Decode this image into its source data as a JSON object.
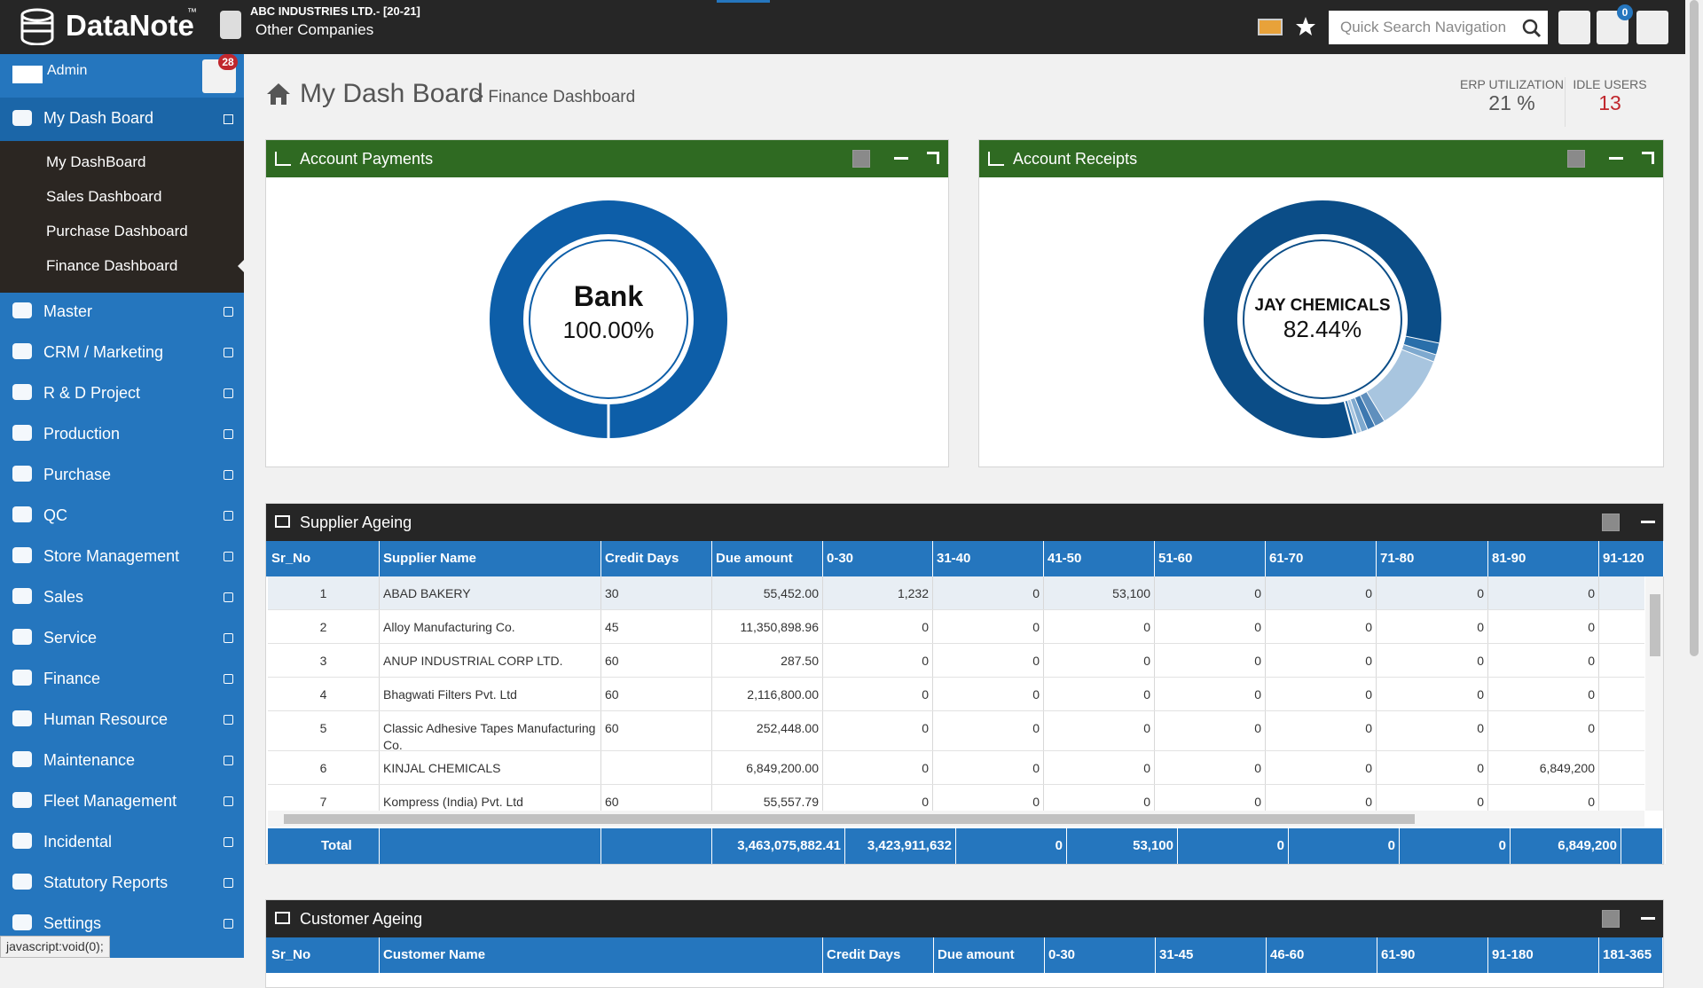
{
  "header": {
    "brand": "DataNote",
    "trademark": "™",
    "company": "ABC INDUSTRIES LTD.- [20-21]",
    "company_switch": "Other Companies",
    "search_placeholder": "Quick Search Navigation",
    "notifications": "0"
  },
  "sidebar": {
    "user": "Admin",
    "alerts": "28",
    "active_menu": "My Dash Board",
    "submenu": [
      "My DashBoard",
      "Sales Dashboard",
      "Purchase Dashboard",
      "Finance Dashboard"
    ],
    "menu": [
      "Master",
      "CRM / Marketing",
      "R & D Project",
      "Production",
      "Purchase",
      "QC",
      "Store Management",
      "Sales",
      "Service",
      "Finance",
      "Human Resource",
      "Maintenance",
      "Fleet Management",
      "Incidental",
      "Statutory Reports",
      "Settings"
    ]
  },
  "page": {
    "title": "My Dash Board",
    "breadcrumb": "> Finance Dashboard",
    "stats": [
      {
        "label": "ERP UTILIZATION",
        "value": "21 %"
      },
      {
        "label": "IDLE USERS",
        "value": "13"
      }
    ]
  },
  "chart_data": [
    {
      "type": "pie",
      "title": "Account Payments",
      "categories": [
        "Bank"
      ],
      "values": [
        100
      ],
      "value_labels": [
        "100.00%"
      ],
      "colors": [
        "#0d5ea8"
      ]
    },
    {
      "type": "pie",
      "title": "Account Receipts",
      "categories": [
        "JAY CHEMICALS",
        null,
        null,
        null,
        null,
        null,
        null,
        null,
        null
      ],
      "values": [
        82.44,
        1.6,
        1.0,
        10.5,
        1.4,
        1.1,
        0.9,
        0.6,
        0.46
      ],
      "value_labels": [
        "82.44%",
        null,
        null,
        null,
        null,
        null,
        null,
        null,
        null
      ],
      "colors": [
        "#0b4d87",
        "#2a6faa",
        "#7ea9cf",
        "#a8c5df",
        "#5f8fbd",
        "#3d78b0",
        "#7ea9cf",
        "#a8c5df",
        "#2a6faa"
      ]
    }
  ],
  "supplier_ageing": {
    "title": "Supplier Ageing",
    "columns": [
      "Sr_No",
      "Supplier Name",
      "Credit Days",
      "Due amount",
      "0-30",
      "31-40",
      "41-50",
      "51-60",
      "61-70",
      "71-80",
      "81-90",
      "91-120"
    ],
    "rows": [
      [
        "1",
        "ABAD BAKERY",
        "30",
        "55,452.00",
        "1,232",
        "0",
        "53,100",
        "0",
        "0",
        "0",
        "0",
        null
      ],
      [
        "2",
        "Alloy Manufacturing Co.",
        "45",
        "11,350,898.96",
        "0",
        "0",
        "0",
        "0",
        "0",
        "0",
        "0",
        null
      ],
      [
        "3",
        "ANUP INDUSTRIAL CORP LTD.",
        "60",
        "287.50",
        "0",
        "0",
        "0",
        "0",
        "0",
        "0",
        "0",
        null
      ],
      [
        "4",
        "Bhagwati Filters Pvt. Ltd",
        "60",
        "2,116,800.00",
        "0",
        "0",
        "0",
        "0",
        "0",
        "0",
        "0",
        null
      ],
      [
        "5",
        "Classic Adhesive Tapes Manufacturing Co.",
        "60",
        "252,448.00",
        "0",
        "0",
        "0",
        "0",
        "0",
        "0",
        "0",
        null
      ],
      [
        "6",
        "KINJAL CHEMICALS",
        null,
        "6,849,200.00",
        "0",
        "0",
        "0",
        "0",
        "0",
        "0",
        "6,849,200",
        null
      ],
      [
        "7",
        "Kompress (India) Pvt. Ltd",
        "60",
        "55,557.79",
        "0",
        "0",
        "0",
        "0",
        "0",
        "0",
        "0",
        null
      ]
    ],
    "total": [
      "Total",
      null,
      null,
      "3,463,075,882.41",
      "3,423,911,632",
      "0",
      "53,100",
      "0",
      "0",
      "0",
      "6,849,200",
      null
    ]
  },
  "customer_ageing": {
    "title": "Customer Ageing",
    "columns": [
      "Sr_No",
      "Customer Name",
      "Credit Days",
      "Due amount",
      "0-30",
      "31-45",
      "46-60",
      "61-90",
      "91-180",
      "181-365"
    ]
  },
  "status_bar": "javascript:void(0);"
}
